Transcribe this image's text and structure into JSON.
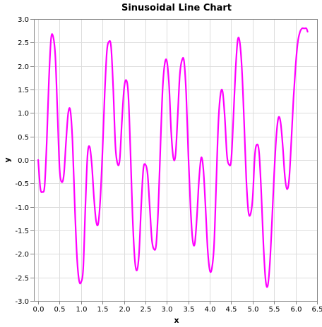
{
  "chart_data": {
    "type": "line",
    "title": "Sinusoidal Line Chart",
    "xlabel": "x",
    "ylabel": "y",
    "xlim": [
      -0.1,
      6.5
    ],
    "ylim": [
      -3.0,
      3.0
    ],
    "grid": true,
    "xticks": [
      "0.0",
      "0.5",
      "1.0",
      "1.5",
      "2.0",
      "2.5",
      "3.0",
      "3.5",
      "4.0",
      "4.5",
      "5.0",
      "5.5",
      "6.0",
      "6.5"
    ],
    "yticks": [
      "3.0",
      "2.5",
      "2.0",
      "1.5",
      "1.0",
      "0.5",
      "0.0",
      "-0.5",
      "-1.0",
      "-1.5",
      "-2.0",
      "-2.5",
      "-3.0"
    ],
    "colors": {
      "line": "#ff00ff"
    },
    "series": [
      {
        "x": [
          0.0,
          0.05,
          0.1,
          0.15,
          0.2,
          0.25,
          0.3,
          0.35,
          0.4,
          0.45,
          0.5,
          0.55,
          0.6,
          0.65,
          0.7,
          0.75,
          0.8,
          0.85,
          0.9,
          0.95,
          1.0,
          1.05,
          1.1,
          1.15,
          1.2,
          1.25,
          1.3,
          1.35,
          1.4,
          1.45,
          1.5,
          1.55,
          1.6,
          1.65,
          1.7,
          1.75,
          1.8,
          1.85,
          1.9,
          1.95,
          2.0,
          2.05,
          2.1,
          2.15,
          2.2,
          2.25,
          2.3,
          2.35,
          2.4,
          2.45,
          2.5,
          2.55,
          2.6,
          2.65,
          2.7,
          2.75,
          2.8,
          2.85,
          2.9,
          2.95,
          3.0,
          3.05,
          3.1,
          3.15,
          3.2,
          3.25,
          3.3,
          3.35,
          3.4,
          3.45,
          3.5,
          3.55,
          3.6,
          3.65,
          3.7,
          3.75,
          3.8,
          3.85,
          3.9,
          3.95,
          4.0,
          4.05,
          4.1,
          4.15,
          4.2,
          4.25,
          4.3,
          4.35,
          4.4,
          4.45,
          4.5,
          4.55,
          4.6,
          4.65,
          4.7,
          4.75,
          4.8,
          4.85,
          4.9,
          4.95,
          5.0,
          5.05,
          5.1,
          5.15,
          5.2,
          5.25,
          5.3,
          5.35,
          5.4,
          5.45,
          5.5,
          5.55,
          5.6,
          5.65,
          5.7,
          5.75,
          5.8,
          5.85,
          5.9,
          5.95,
          6.0,
          6.05,
          6.1,
          6.15,
          6.2,
          6.25,
          6.28
        ],
        "y": [
          0.0,
          -0.6,
          -0.68,
          -0.55,
          0.4,
          1.7,
          2.58,
          2.62,
          2.2,
          1.0,
          -0.2,
          -0.47,
          -0.3,
          0.4,
          1.0,
          1.05,
          0.4,
          -0.9,
          -2.0,
          -2.55,
          -2.6,
          -2.3,
          -1.0,
          0.1,
          0.28,
          -0.1,
          -0.8,
          -1.3,
          -1.35,
          -0.8,
          0.2,
          1.4,
          2.3,
          2.52,
          2.4,
          1.5,
          0.3,
          -0.08,
          0.0,
          0.8,
          1.5,
          1.7,
          1.4,
          0.2,
          -1.2,
          -2.1,
          -2.35,
          -2.0,
          -1.0,
          -0.2,
          -0.1,
          -0.3,
          -1.0,
          -1.7,
          -1.9,
          -1.8,
          -1.0,
          0.3,
          1.5,
          2.05,
          2.1,
          1.6,
          0.6,
          0.05,
          0.1,
          0.9,
          1.8,
          2.12,
          2.1,
          1.4,
          0.1,
          -1.0,
          -1.7,
          -1.78,
          -1.2,
          -0.4,
          0.05,
          -0.2,
          -1.0,
          -1.9,
          -2.35,
          -2.3,
          -1.8,
          -0.5,
          0.8,
          1.4,
          1.45,
          0.9,
          0.1,
          -0.1,
          0.0,
          0.9,
          1.9,
          2.55,
          2.5,
          1.9,
          0.8,
          -0.4,
          -1.1,
          -1.15,
          -0.8,
          0.1,
          0.33,
          0.15,
          -0.7,
          -1.8,
          -2.55,
          -2.68,
          -2.2,
          -1.3,
          -0.3,
          0.5,
          0.9,
          0.8,
          0.3,
          -0.35,
          -0.62,
          -0.4,
          0.4,
          1.3,
          2.0,
          2.5,
          2.72,
          2.8,
          2.8,
          2.8,
          2.73
        ]
      }
    ]
  }
}
